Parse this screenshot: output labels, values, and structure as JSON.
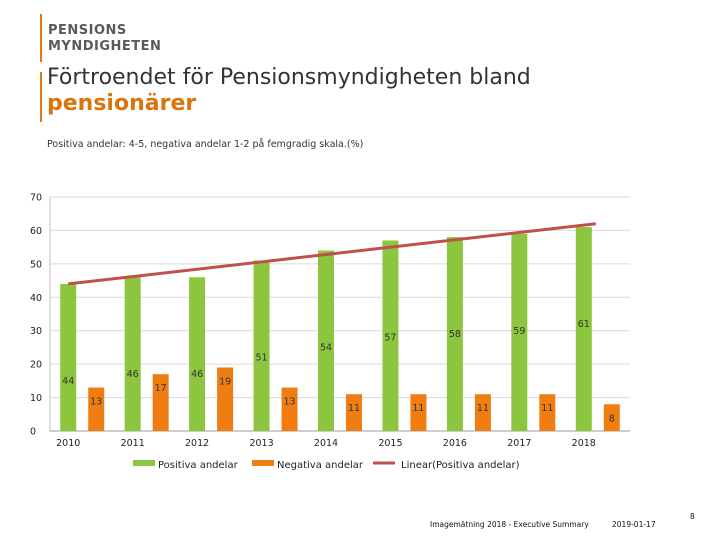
{
  "logo": {
    "line1": "PENSIONS",
    "line2": "MYNDIGHETEN"
  },
  "header": {
    "title_line1": "Förtroendet för Pensionsmyndigheten bland",
    "title_line2": "pensionärer",
    "subtitle": "Positiva andelar: 4-5, negativa andelar 1-2 på femgradig skala.(%)"
  },
  "footer": {
    "text": "Imagemätning 2018 - Executive Summary",
    "date": "2019-01-17",
    "page": "8"
  },
  "colors": {
    "positive": "#8cc63f",
    "negative": "#f07d12",
    "trend": "#c0504d",
    "accent": "#e07a16"
  },
  "chart_data": {
    "type": "bar",
    "title": "",
    "xlabel": "",
    "ylabel": "",
    "categories": [
      "2010",
      "2011",
      "2012",
      "2013",
      "2014",
      "2015",
      "2016",
      "2017",
      "2018"
    ],
    "series": [
      {
        "name": "Positiva andelar",
        "values": [
          44,
          46,
          46,
          51,
          54,
          57,
          58,
          59,
          61
        ]
      },
      {
        "name": "Negativa andelar",
        "values": [
          13,
          17,
          19,
          13,
          11,
          11,
          11,
          11,
          8
        ]
      }
    ],
    "trendline": {
      "name": "Linear(Positiva andelar)",
      "of": "Positiva andelar",
      "start": 44,
      "end": 62
    },
    "ylim": [
      0,
      70
    ],
    "yticks": [
      0,
      10,
      20,
      30,
      40,
      50,
      60,
      70
    ],
    "grid": true,
    "legend": "bottom"
  }
}
